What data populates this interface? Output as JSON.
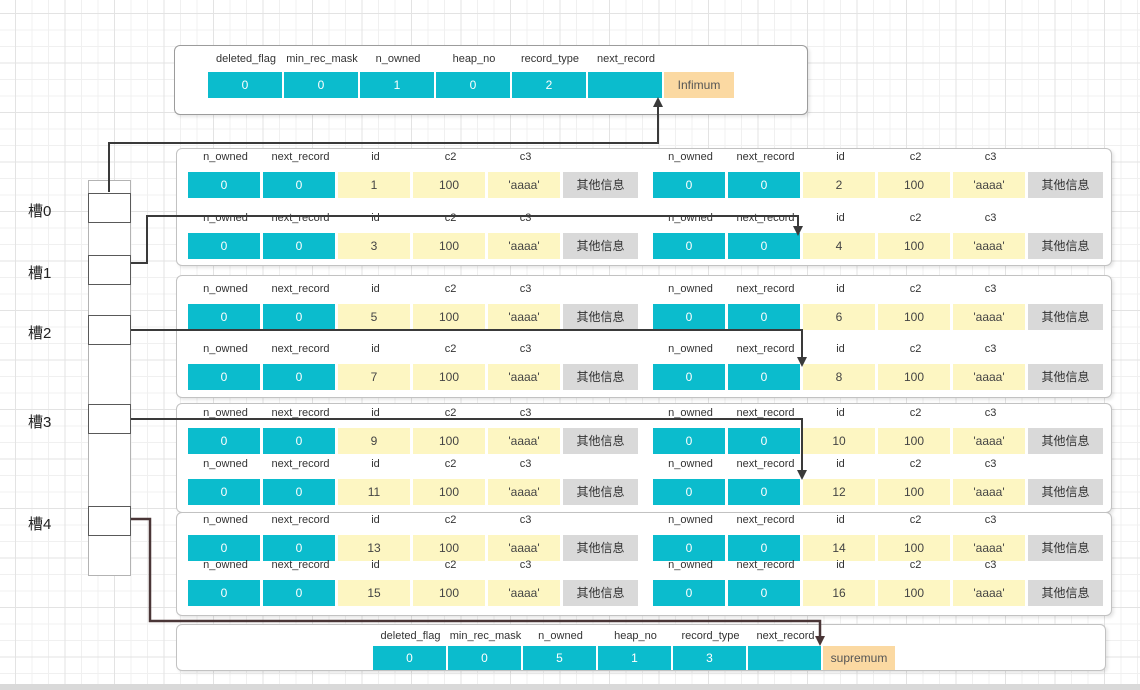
{
  "slots": [
    {
      "label": "槽0"
    },
    {
      "label": "槽1"
    },
    {
      "label": "槽2"
    },
    {
      "label": "槽3"
    },
    {
      "label": "槽4"
    }
  ],
  "system_record_headers": [
    "deleted_flag",
    "min_rec_mask",
    "n_owned",
    "heap_no",
    "record_type",
    "next_record"
  ],
  "infimum": {
    "values": [
      "0",
      "0",
      "1",
      "0",
      "2",
      ""
    ],
    "label": "Infimum"
  },
  "supremum": {
    "values": [
      "0",
      "0",
      "5",
      "1",
      "3",
      ""
    ],
    "label": "supremum"
  },
  "user_record_headers": [
    "n_owned",
    "next_record",
    "id",
    "c2",
    "c3"
  ],
  "groups": [
    {
      "records": [
        {
          "values": [
            "0",
            "0",
            "1",
            "100",
            "'aaaa'",
            "其他信息"
          ]
        },
        {
          "values": [
            "0",
            "0",
            "2",
            "100",
            "'aaaa'",
            "其他信息"
          ]
        },
        {
          "values": [
            "0",
            "0",
            "3",
            "100",
            "'aaaa'",
            "其他信息"
          ]
        },
        {
          "values": [
            "0",
            "0",
            "4",
            "100",
            "'aaaa'",
            "其他信息"
          ]
        }
      ]
    },
    {
      "records": [
        {
          "values": [
            "0",
            "0",
            "5",
            "100",
            "'aaaa'",
            "其他信息"
          ]
        },
        {
          "values": [
            "0",
            "0",
            "6",
            "100",
            "'aaaa'",
            "其他信息"
          ]
        },
        {
          "values": [
            "0",
            "0",
            "7",
            "100",
            "'aaaa'",
            "其他信息"
          ]
        },
        {
          "values": [
            "0",
            "0",
            "8",
            "100",
            "'aaaa'",
            "其他信息"
          ]
        }
      ]
    },
    {
      "records": [
        {
          "values": [
            "0",
            "0",
            "9",
            "100",
            "'aaaa'",
            "其他信息"
          ]
        },
        {
          "values": [
            "0",
            "0",
            "10",
            "100",
            "'aaaa'",
            "其他信息"
          ]
        },
        {
          "values": [
            "0",
            "0",
            "11",
            "100",
            "'aaaa'",
            "其他信息"
          ]
        },
        {
          "values": [
            "0",
            "0",
            "12",
            "100",
            "'aaaa'",
            "其他信息"
          ]
        }
      ]
    },
    {
      "records": [
        {
          "values": [
            "0",
            "0",
            "13",
            "100",
            "'aaaa'",
            "其他信息"
          ]
        },
        {
          "values": [
            "0",
            "0",
            "14",
            "100",
            "'aaaa'",
            "其他信息"
          ]
        },
        {
          "values": [
            "0",
            "0",
            "15",
            "100",
            "'aaaa'",
            "其他信息"
          ]
        },
        {
          "values": [
            "0",
            "0",
            "16",
            "100",
            "'aaaa'",
            "其他信息"
          ]
        }
      ]
    }
  ],
  "colors": {
    "cyan": "#0bbccd",
    "yellow": "#fdf6c2",
    "gray": "#d9d9d9",
    "orange": "#fbd9a2",
    "line": "#3a3a3a",
    "slot4_line": "#4a3637",
    "grid_minor": "#f0f0f0",
    "grid_major": "#e3e3e3"
  }
}
